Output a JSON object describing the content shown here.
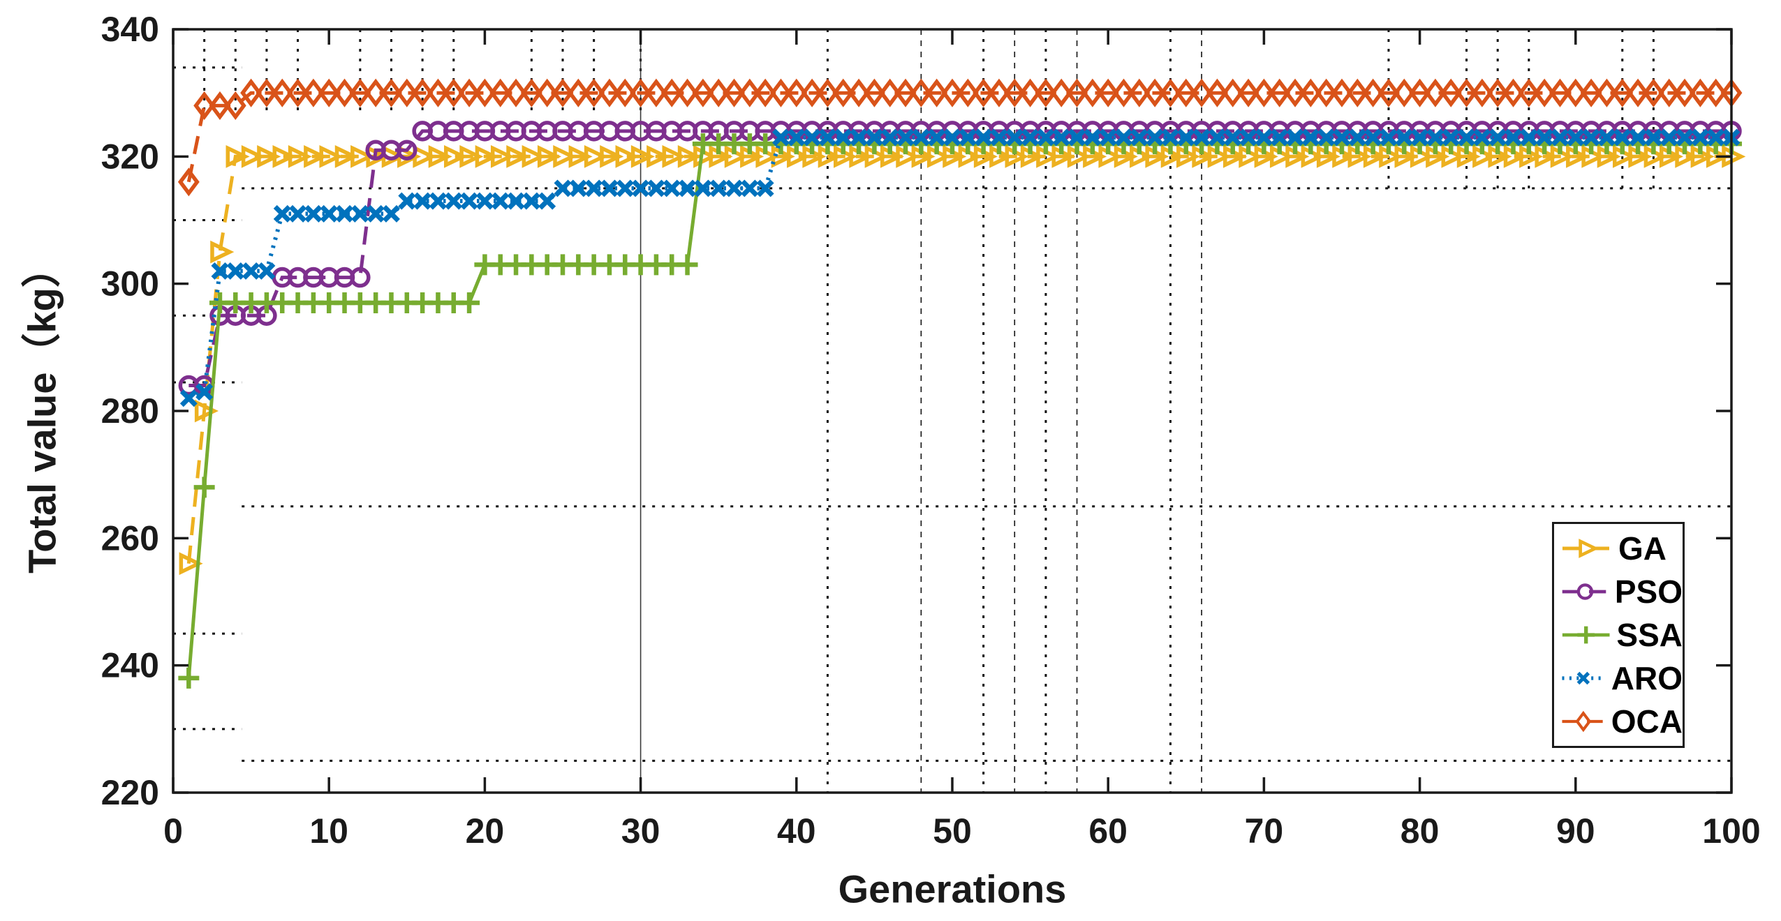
{
  "chart_data": {
    "type": "line",
    "title": "",
    "xlabel": "Generations",
    "ylabel": "Total value（kg）",
    "xlim": [
      0,
      100
    ],
    "ylim": [
      220,
      340
    ],
    "xticks": [
      0,
      10,
      20,
      30,
      40,
      50,
      60,
      70,
      80,
      90,
      100
    ],
    "yticks": [
      220,
      240,
      260,
      280,
      300,
      320,
      340
    ],
    "grid": false,
    "legend_position": "lower right",
    "axis_color": "#1a1a1a",
    "steps_format": "each step is [generation_from, value]; the value holds until the next step; markers are drawn at every generation 1..100",
    "series": [
      {
        "name": "GA",
        "color": "#EDB120",
        "line_style": "dashed",
        "marker": "triangle-right",
        "steps": [
          [
            1,
            256
          ],
          [
            2,
            280
          ],
          [
            3,
            305
          ],
          [
            4,
            320
          ]
        ],
        "final_value": 320
      },
      {
        "name": "PSO",
        "color": "#7E2F8E",
        "line_style": "dashed",
        "marker": "circle",
        "steps": [
          [
            1,
            284
          ],
          [
            3,
            295
          ],
          [
            7,
            301
          ],
          [
            13,
            321
          ],
          [
            16,
            324
          ]
        ],
        "final_value": 324
      },
      {
        "name": "SSA",
        "color": "#77AC30",
        "line_style": "solid",
        "marker": "plus",
        "steps": [
          [
            1,
            238
          ],
          [
            2,
            268
          ],
          [
            3,
            297
          ],
          [
            20,
            303
          ],
          [
            34,
            322
          ]
        ],
        "final_value": 322
      },
      {
        "name": "ARO",
        "color": "#0072BD",
        "line_style": "dotted",
        "marker": "x",
        "steps": [
          [
            1,
            282
          ],
          [
            2,
            283
          ],
          [
            3,
            302
          ],
          [
            7,
            311
          ],
          [
            15,
            313
          ],
          [
            25,
            315
          ],
          [
            39,
            323
          ]
        ],
        "final_value": 323
      },
      {
        "name": "OCA",
        "color": "#D95319",
        "line_style": "dashed",
        "marker": "diamond",
        "steps": [
          [
            1,
            316
          ],
          [
            2,
            328
          ],
          [
            5,
            330
          ]
        ],
        "final_value": 330
      }
    ],
    "annotations": {
      "h_dotted_segments": [
        {
          "value": 334,
          "g0": 0,
          "g1": 4.4
        },
        {
          "value": 310,
          "g0": 0,
          "g1": 4.4
        },
        {
          "value": 295,
          "g0": 0,
          "g1": 4.4
        },
        {
          "value": 284.5,
          "g0": 0,
          "g1": 4.4
        },
        {
          "value": 245,
          "g0": 0,
          "g1": 4.4
        },
        {
          "value": 230,
          "g0": 0,
          "g1": 4.4
        },
        {
          "value": 315,
          "g0": 4.4,
          "g1": 100
        },
        {
          "value": 265,
          "g0": 4.4,
          "g1": 100
        },
        {
          "value": 225,
          "g0": 4.4,
          "g1": 100
        }
      ],
      "v_dotted_top_stubs": [
        2,
        4,
        6,
        8,
        12,
        14,
        16,
        18,
        23,
        25,
        27,
        30
      ],
      "v_dotted_right_stubs": [
        78,
        83,
        85,
        87,
        93,
        95
      ],
      "v_dotted_full": [
        42,
        48,
        52,
        54,
        56,
        58,
        64,
        66
      ],
      "v_solid_full": [
        30
      ]
    }
  }
}
